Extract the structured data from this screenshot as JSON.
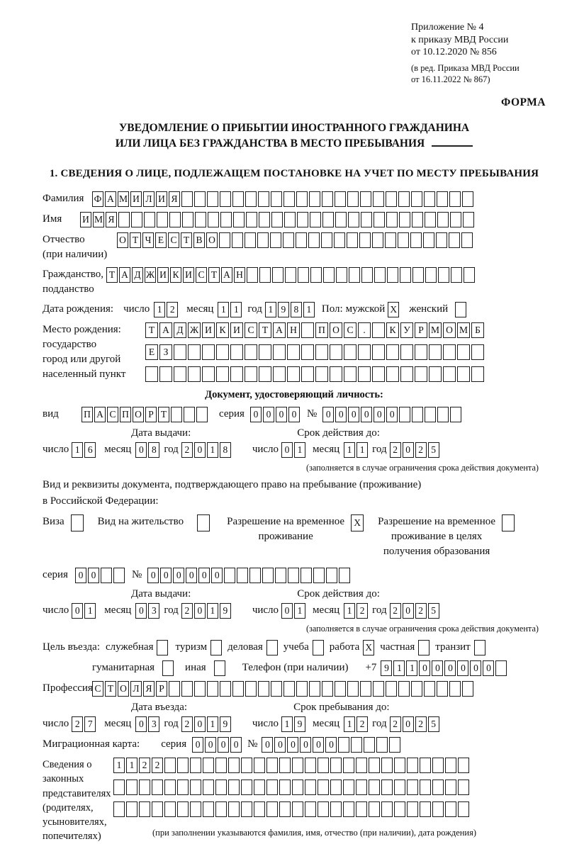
{
  "header": {
    "appendix_line1": "Приложение № 4",
    "appendix_line2": "к приказу МВД России",
    "appendix_line3": "от 10.12.2020 № 856",
    "edition_line1": "(в ред. Приказа МВД России",
    "edition_line2": "от 16.11.2022 № 867)",
    "form_label": "ФОРМА"
  },
  "title": {
    "line1": "УВЕДОМЛЕНИЕ О ПРИБЫТИИ ИНОСТРАННОГО ГРАЖДАНИНА",
    "line2": "ИЛИ ЛИЦА БЕЗ ГРАЖДАНСТВА В МЕСТО ПРЕБЫВАНИЯ"
  },
  "section1_heading": "1. СВЕДЕНИЯ О ЛИЦЕ, ПОДЛЕЖАЩЕМ ПОСТАНОВКЕ НА УЧЕТ ПО МЕСТУ ПРЕБЫВАНИЯ",
  "person": {
    "surname": {
      "label": "Фамилия",
      "value": "ФАМИЛИЯ",
      "count": 30
    },
    "given_name": {
      "label": "Имя",
      "value": "ИМЯ",
      "count": 31
    },
    "patronymic": {
      "label_line1": "Отчество",
      "label_line2": "(при наличии)",
      "value": "ОТЧЕСТВО",
      "count": 28
    },
    "citizenship": {
      "label_line1": "Гражданство,",
      "label_line2": "подданство",
      "value": "ТАДЖИКИСТАН",
      "count": 29
    },
    "birth_date": {
      "label": "Дата рождения:",
      "day_label": "число",
      "day": {
        "value": "12",
        "count": 2
      },
      "month_label": "месяц",
      "month": {
        "value": "11",
        "count": 2
      },
      "year_label": "год",
      "year": {
        "value": "1981",
        "count": 4
      },
      "sex_label": "Пол:",
      "male_label": "мужской",
      "male_box": {
        "value": "X",
        "count": 1
      },
      "female_label": "женский",
      "female_box": {
        "value": "",
        "count": 1
      }
    },
    "birth_place": {
      "label_line1": "Место рождения:",
      "label_line2": "государство",
      "label_line3": "город или другой",
      "label_line4": "населенный пункт",
      "row1": {
        "value": "ТАДЖИКИСТАН ПОС. КУРМОМБ",
        "count": 24
      },
      "row2": {
        "value": "ЕЗ",
        "count": 24
      },
      "row3": {
        "value": "",
        "count": 24
      }
    }
  },
  "identity_doc": {
    "heading": "Документ, удостоверяющий личность:",
    "kind_label": "вид",
    "kind": {
      "value": "ПАСПОРТ",
      "count": 10
    },
    "series_label": "серия",
    "series": {
      "value": "0000",
      "count": 4
    },
    "number_sign": "№",
    "number": {
      "value": "000000",
      "count": 11
    },
    "issue_heading": "Дата выдачи:",
    "expiry_heading": "Срок действия до:",
    "day_label": "число",
    "month_label": "месяц",
    "year_label": "год",
    "issue_day": {
      "value": "16",
      "count": 2
    },
    "issue_month": {
      "value": "08",
      "count": 2
    },
    "issue_year": {
      "value": "2018",
      "count": 4
    },
    "expiry_day": {
      "value": "01",
      "count": 2
    },
    "expiry_month": {
      "value": "11",
      "count": 2
    },
    "expiry_year": {
      "value": "2025",
      "count": 4
    },
    "expiry_note": "(заполняется в случае ограничения срока действия документа)"
  },
  "residence_doc": {
    "intro_line1": "Вид и реквизиты документа, подтверждающего право на пребывание (проживание)",
    "intro_line2": "в Российской Федерации:",
    "visa_label": "Виза",
    "visa_box": {
      "value": "",
      "count": 1
    },
    "residence_permit_label": "Вид на жительство",
    "residence_permit_box": {
      "value": "",
      "count": 1
    },
    "temp_residence_label_line1": "Разрешение на временное",
    "temp_residence_label_line2": "проживание",
    "temp_residence_box": {
      "value": "X",
      "count": 1
    },
    "temp_residence_edu_label_line1": "Разрешение на временное",
    "temp_residence_edu_label_line2": "проживание в целях",
    "temp_residence_edu_label_line3": "получения образования",
    "temp_residence_edu_box": {
      "value": "",
      "count": 1
    },
    "series_label": "серия",
    "series": {
      "value": "00",
      "count": 4
    },
    "number_sign": "№",
    "number": {
      "value": "000000",
      "count": 16
    },
    "issue_heading": "Дата выдачи:",
    "expiry_heading": "Срок действия до:",
    "day_label": "число",
    "month_label": "месяц",
    "year_label": "год",
    "issue_day": {
      "value": "01",
      "count": 2
    },
    "issue_month": {
      "value": "03",
      "count": 2
    },
    "issue_year": {
      "value": "2019",
      "count": 4
    },
    "expiry_day": {
      "value": "01",
      "count": 2
    },
    "expiry_month": {
      "value": "12",
      "count": 2
    },
    "expiry_year": {
      "value": "2025",
      "count": 4
    },
    "expiry_note": "(заполняется в случае ограничения срока действия документа)"
  },
  "entry_purpose": {
    "label": "Цель въезда:",
    "official_label": "служебная",
    "official_box": {
      "value": "",
      "count": 1
    },
    "tourism_label": "туризм",
    "tourism_box": {
      "value": "",
      "count": 1
    },
    "business_label": "деловая",
    "business_box": {
      "value": "",
      "count": 1
    },
    "study_label": "учеба",
    "study_box": {
      "value": "",
      "count": 1
    },
    "work_label": "работа",
    "work_box": {
      "value": "X",
      "count": 1
    },
    "private_label": "частная",
    "private_box": {
      "value": "",
      "count": 1
    },
    "transit_label": "транзит",
    "transit_box": {
      "value": "",
      "count": 1
    },
    "humanitarian_label": "гуманитарная",
    "humanitarian_box": {
      "value": "",
      "count": 1
    },
    "other_label": "иная",
    "other_box": {
      "value": "",
      "count": 1
    },
    "phone_label": "Телефон (при наличии)",
    "phone_prefix": "+7",
    "phone": {
      "value": "911000000",
      "count": 10
    }
  },
  "profession": {
    "label": "Профессия",
    "value": "СТОЛЯР",
    "count": 30
  },
  "entry_stay": {
    "entry_heading": "Дата въезда:",
    "stay_heading": "Срок пребывания до:",
    "day_label": "число",
    "month_label": "месяц",
    "year_label": "год",
    "entry_day": {
      "value": "27",
      "count": 2
    },
    "entry_month": {
      "value": "03",
      "count": 2
    },
    "entry_year": {
      "value": "2019",
      "count": 4
    },
    "stay_day": {
      "value": "19",
      "count": 2
    },
    "stay_month": {
      "value": "12",
      "count": 2
    },
    "stay_year": {
      "value": "2025",
      "count": 4
    }
  },
  "migration_card": {
    "label": "Миграционная карта:",
    "series_label": "серия",
    "series": {
      "value": "0000",
      "count": 4
    },
    "number_sign": "№",
    "number": {
      "value": "000000",
      "count": 11
    }
  },
  "representatives": {
    "label_line1": "Сведения о",
    "label_line2": "законных",
    "label_line3": "представителях",
    "label_line4": "(родителях,",
    "label_line5": "усыновителях,",
    "label_line6": "попечителях)",
    "row1": {
      "value": "1122",
      "count": 28
    },
    "row2": {
      "value": "",
      "count": 28
    },
    "row3": {
      "value": "",
      "count": 28
    },
    "note": "(при заполнении указываются фамилия, имя, отчество (при наличии), дата рождения)"
  }
}
